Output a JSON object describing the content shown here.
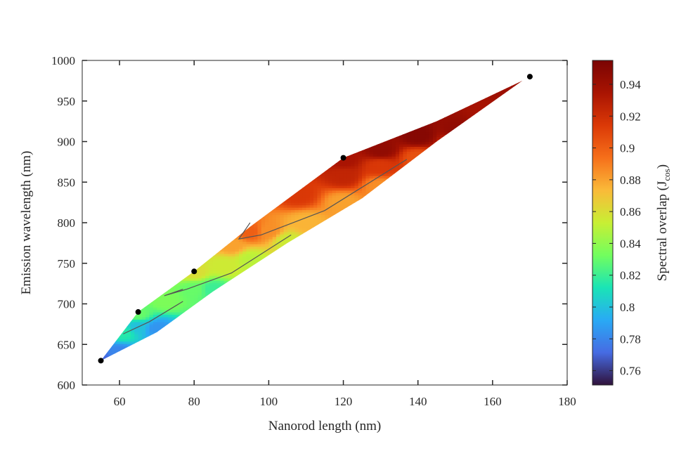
{
  "chart_data": {
    "type": "heatmap",
    "title": "",
    "xlabel": "Nanorod length (nm)",
    "ylabel": "Emission wavelength (nm)",
    "xlim": [
      50,
      180
    ],
    "ylim": [
      600,
      1000
    ],
    "x_ticks": [
      60,
      80,
      100,
      120,
      140,
      160,
      180
    ],
    "y_ticks": [
      600,
      650,
      700,
      750,
      800,
      850,
      900,
      950,
      1000
    ],
    "grid": false,
    "colorbar": {
      "label_main": "Spectral overlap (J",
      "label_sub": "cos",
      "label_close": ")",
      "range": [
        0.751,
        0.955
      ],
      "ticks": [
        0.76,
        0.78,
        0.8,
        0.82,
        0.84,
        0.86,
        0.88,
        0.9,
        0.92,
        0.94
      ],
      "colormap": "turbo"
    },
    "points": [
      {
        "x": 55,
        "y": 630
      },
      {
        "x": 65,
        "y": 690
      },
      {
        "x": 80,
        "y": 740
      },
      {
        "x": 120,
        "y": 880
      },
      {
        "x": 170,
        "y": 980
      }
    ],
    "region_upper_boundary": [
      {
        "x": 55,
        "y": 630
      },
      {
        "x": 65,
        "y": 690
      },
      {
        "x": 80,
        "y": 740
      },
      {
        "x": 95,
        "y": 795
      },
      {
        "x": 120,
        "y": 880
      },
      {
        "x": 145,
        "y": 925
      },
      {
        "x": 168,
        "y": 975
      }
    ],
    "region_lower_boundary": [
      {
        "x": 55,
        "y": 630
      },
      {
        "x": 70,
        "y": 665
      },
      {
        "x": 85,
        "y": 715
      },
      {
        "x": 105,
        "y": 775
      },
      {
        "x": 125,
        "y": 830
      },
      {
        "x": 145,
        "y": 900
      },
      {
        "x": 168,
        "y": 975
      }
    ],
    "overlap_values": [
      {
        "x": 55,
        "y": 630,
        "value": 0.77
      },
      {
        "x": 60,
        "y": 640,
        "value": 0.78
      },
      {
        "x": 61,
        "y": 665,
        "value": 0.815
      },
      {
        "x": 65,
        "y": 672,
        "value": 0.8
      },
      {
        "x": 70,
        "y": 670,
        "value": 0.785
      },
      {
        "x": 65,
        "y": 688,
        "value": 0.83
      },
      {
        "x": 72,
        "y": 705,
        "value": 0.835
      },
      {
        "x": 80,
        "y": 718,
        "value": 0.83
      },
      {
        "x": 85,
        "y": 718,
        "value": 0.82
      },
      {
        "x": 80,
        "y": 740,
        "value": 0.86
      },
      {
        "x": 88,
        "y": 748,
        "value": 0.855
      },
      {
        "x": 95,
        "y": 755,
        "value": 0.85
      },
      {
        "x": 105,
        "y": 778,
        "value": 0.855
      },
      {
        "x": 90,
        "y": 772,
        "value": 0.88
      },
      {
        "x": 95,
        "y": 790,
        "value": 0.9
      },
      {
        "x": 100,
        "y": 790,
        "value": 0.885
      },
      {
        "x": 110,
        "y": 800,
        "value": 0.875
      },
      {
        "x": 120,
        "y": 825,
        "value": 0.88
      },
      {
        "x": 130,
        "y": 845,
        "value": 0.885
      },
      {
        "x": 108,
        "y": 835,
        "value": 0.915
      },
      {
        "x": 120,
        "y": 858,
        "value": 0.925
      },
      {
        "x": 120,
        "y": 878,
        "value": 0.935
      },
      {
        "x": 130,
        "y": 870,
        "value": 0.915
      },
      {
        "x": 140,
        "y": 880,
        "value": 0.905
      },
      {
        "x": 130,
        "y": 890,
        "value": 0.945
      },
      {
        "x": 140,
        "y": 908,
        "value": 0.95
      },
      {
        "x": 150,
        "y": 915,
        "value": 0.945
      },
      {
        "x": 150,
        "y": 900,
        "value": 0.92
      },
      {
        "x": 160,
        "y": 930,
        "value": 0.935
      },
      {
        "x": 165,
        "y": 965,
        "value": 0.94
      }
    ],
    "contour_lines": [
      {
        "level": 0.8,
        "points": [
          {
            "x": 61,
            "y": 663
          },
          {
            "x": 68,
            "y": 678
          },
          {
            "x": 77,
            "y": 703
          }
        ]
      },
      {
        "level": 0.85,
        "points": [
          {
            "x": 77,
            "y": 718
          },
          {
            "x": 72,
            "y": 710
          },
          {
            "x": 78,
            "y": 718
          },
          {
            "x": 90,
            "y": 738
          },
          {
            "x": 106,
            "y": 785
          }
        ]
      },
      {
        "level": 0.9,
        "points": [
          {
            "x": 95,
            "y": 800
          },
          {
            "x": 92,
            "y": 780
          },
          {
            "x": 98,
            "y": 785
          },
          {
            "x": 115,
            "y": 815
          },
          {
            "x": 137,
            "y": 878
          }
        ]
      }
    ]
  }
}
